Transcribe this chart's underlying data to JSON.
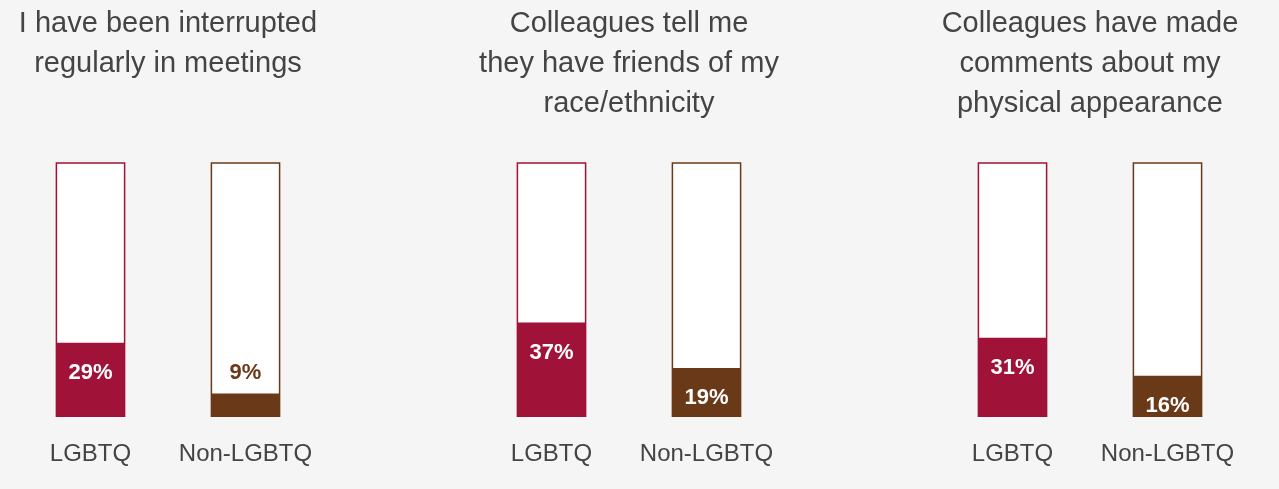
{
  "chart_data": [
    {
      "type": "bar",
      "title": "I have been interrupted regularly in meetings",
      "categories": [
        "LGBTQ",
        "Non-LGBTQ"
      ],
      "values": [
        29,
        9
      ],
      "value_labels": [
        "29%",
        "9%"
      ],
      "colors": [
        "#a01238",
        "#6a3a18"
      ],
      "ylim": [
        0,
        100
      ],
      "tick_labels": "x"
    },
    {
      "type": "bar",
      "title": "Colleagues tell me they have friends of my race/ethnicity",
      "categories": [
        "LGBTQ",
        "Non-LGBTQ"
      ],
      "values": [
        37,
        19
      ],
      "value_labels": [
        "37%",
        "19%"
      ],
      "colors": [
        "#a01238",
        "#6a3a18"
      ],
      "ylim": [
        0,
        100
      ],
      "tick_labels": "x"
    },
    {
      "type": "bar",
      "title": "Colleagues have made comments about my physical appearance",
      "categories": [
        "LGBTQ",
        "Non-LGBTQ"
      ],
      "values": [
        31,
        16
      ],
      "value_labels": [
        "31%",
        "16%"
      ],
      "colors": [
        "#a01238",
        "#6a3a18"
      ],
      "ylim": [
        0,
        100
      ],
      "tick_labels": "x"
    }
  ]
}
